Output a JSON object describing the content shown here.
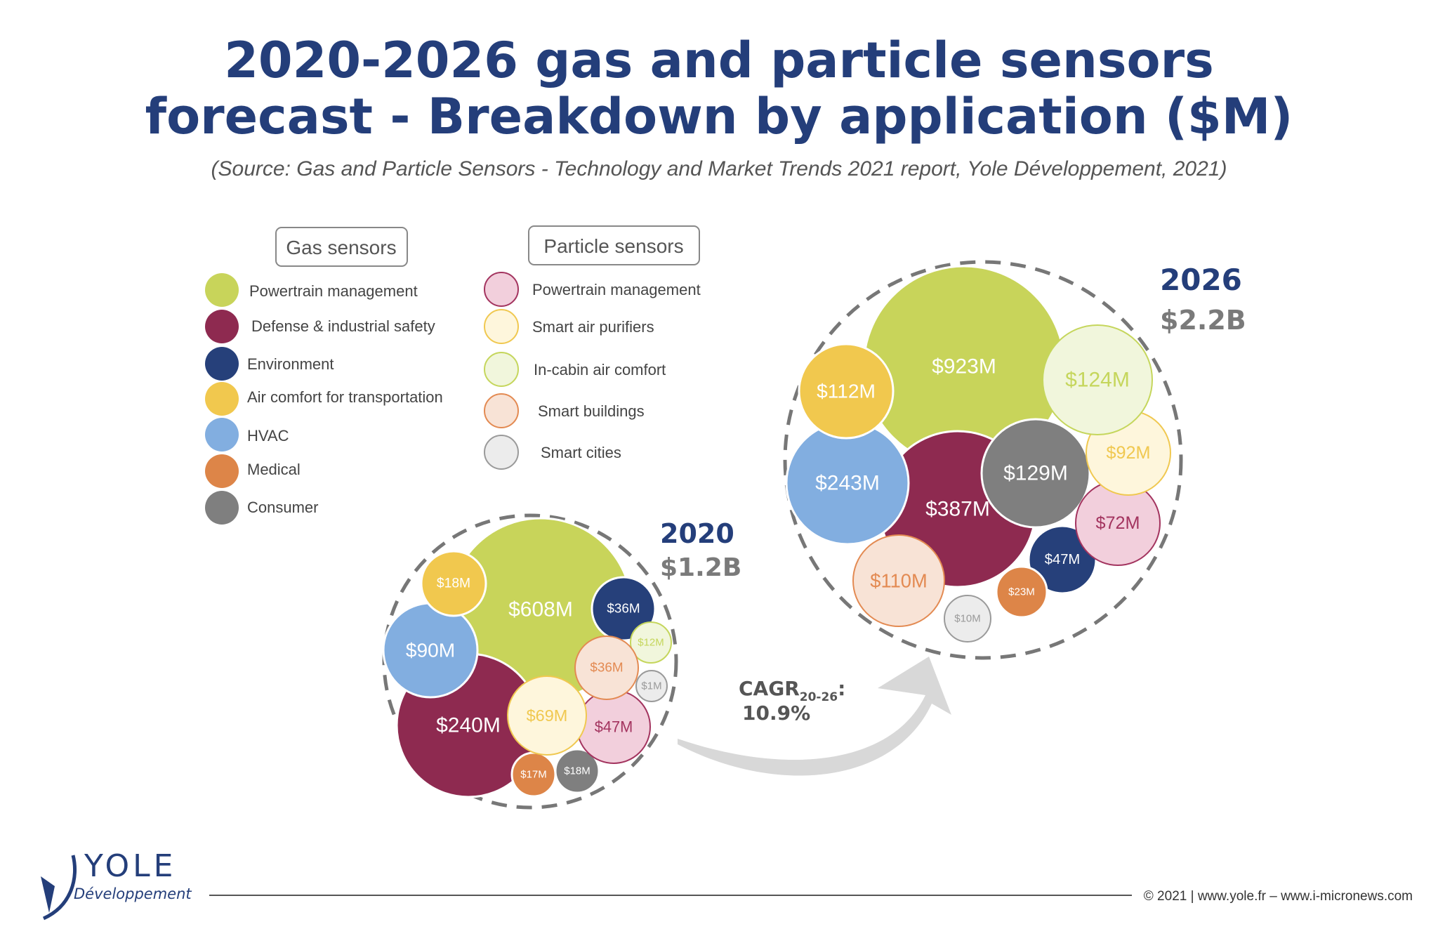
{
  "title": {
    "line1": "2020-2026 gas and particle sensors",
    "line2": "forecast - Breakdown by application ($M)",
    "source": "(Source: Gas and Particle Sensors - Technology and Market Trends 2021 report, Yole Développement, 2021)"
  },
  "legend": {
    "gas_header": "Gas sensors",
    "particle_header": "Particle sensors",
    "gas_items": [
      {
        "key": "gas_powertrain",
        "label": "Powertrain management",
        "color": "#c8d45a"
      },
      {
        "key": "gas_defense",
        "label": "Defense & industrial safety",
        "color": "#8e2a50"
      },
      {
        "key": "gas_environment",
        "label": "Environment",
        "color": "#26407a"
      },
      {
        "key": "gas_air_transport",
        "label": "Air comfort for transportation",
        "color": "#f1c84e"
      },
      {
        "key": "gas_hvac",
        "label": "HVAC",
        "color": "#82aee0"
      },
      {
        "key": "gas_medical",
        "label": "Medical",
        "color": "#dd8548"
      },
      {
        "key": "gas_consumer",
        "label": "Consumer",
        "color": "#7f7f7f"
      }
    ],
    "particle_items": [
      {
        "key": "pm_powertrain",
        "label": "Powertrain management",
        "color": "#f2cfdc",
        "stroke": "#a3345f"
      },
      {
        "key": "pm_purifiers",
        "label": "Smart air purifiers",
        "color": "#fef6dc",
        "stroke": "#f0c850"
      },
      {
        "key": "pm_incabin",
        "label": "In-cabin air comfort",
        "color": "#f1f6dc",
        "stroke": "#c5d65c"
      },
      {
        "key": "pm_buildings",
        "label": "Smart buildings",
        "color": "#f8e3d6",
        "stroke": "#e38a52"
      },
      {
        "key": "pm_cities",
        "label": "Smart cities",
        "color": "#ececec",
        "stroke": "#9a9a9a"
      }
    ]
  },
  "chart_data": [
    {
      "type": "bubble",
      "title": "2020",
      "total": "$1.2B",
      "unit": "$M",
      "series": [
        {
          "category": "gas_powertrain",
          "label": "$608M",
          "value": 608
        },
        {
          "category": "gas_defense",
          "label": "$240M",
          "value": 240
        },
        {
          "category": "gas_hvac",
          "label": "$90M",
          "value": 90
        },
        {
          "category": "gas_air_transport",
          "label": "$18M",
          "value": 18
        },
        {
          "category": "gas_environment",
          "label": "$36M",
          "value": 36
        },
        {
          "category": "gas_medical",
          "label": "$17M",
          "value": 17
        },
        {
          "category": "gas_consumer",
          "label": "$18M",
          "value": 18
        },
        {
          "category": "pm_powertrain",
          "label": "$47M",
          "value": 47
        },
        {
          "category": "pm_purifiers",
          "label": "$69M",
          "value": 69
        },
        {
          "category": "pm_incabin",
          "label": "$12M",
          "value": 12
        },
        {
          "category": "pm_buildings",
          "label": "$36M",
          "value": 36
        },
        {
          "category": "pm_cities",
          "label": "$1M",
          "value": 1
        }
      ]
    },
    {
      "type": "bubble",
      "title": "2026",
      "total": "$2.2B",
      "unit": "$M",
      "series": [
        {
          "category": "gas_powertrain",
          "label": "$923M",
          "value": 923
        },
        {
          "category": "gas_defense",
          "label": "$387M",
          "value": 387
        },
        {
          "category": "gas_hvac",
          "label": "$243M",
          "value": 243
        },
        {
          "category": "gas_air_transport",
          "label": "$112M",
          "value": 112
        },
        {
          "category": "gas_environment",
          "label": "$47M",
          "value": 47
        },
        {
          "category": "gas_medical",
          "label": "$23M",
          "value": 23
        },
        {
          "category": "gas_consumer",
          "label": "$129M",
          "value": 129
        },
        {
          "category": "pm_powertrain",
          "label": "$72M",
          "value": 72
        },
        {
          "category": "pm_purifiers",
          "label": "$92M",
          "value": 92
        },
        {
          "category": "pm_incabin",
          "label": "$124M",
          "value": 124
        },
        {
          "category": "pm_buildings",
          "label": "$110M",
          "value": 110
        },
        {
          "category": "pm_cities",
          "label": "$10M",
          "value": 10
        }
      ]
    }
  ],
  "cagr": {
    "prefix": "CAGR",
    "subscript": "20-26",
    "suffix": ":",
    "value": "10.9%"
  },
  "footer": {
    "logo_main": "YOLE",
    "logo_sub": "Développement",
    "copyright": "© 2021 | www.yole.fr – www.i-micronews.com"
  }
}
